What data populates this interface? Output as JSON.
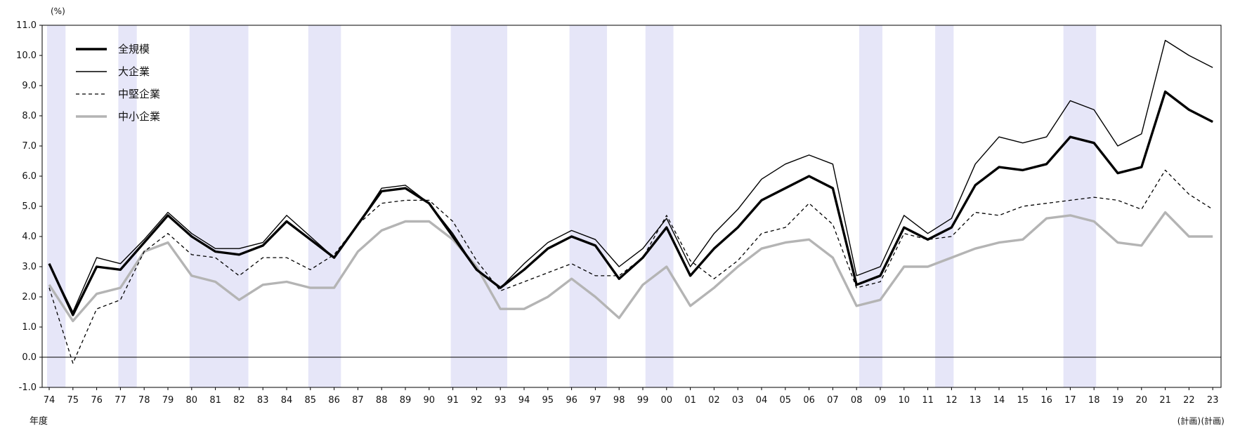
{
  "chart_data": {
    "type": "line",
    "y_unit_label": "(%)",
    "x_axis_suffix_label": "年度",
    "ylim": [
      -1.0,
      11.0
    ],
    "y_ticks": [
      "11.0",
      "10.0",
      "9.0",
      "8.0",
      "7.0",
      "6.0",
      "5.0",
      "4.0",
      "3.0",
      "2.0",
      "1.0",
      "0.0",
      "-1.0"
    ],
    "y_tick_values": [
      11,
      10,
      9,
      8,
      7,
      6,
      5,
      4,
      3,
      2,
      1,
      0,
      -1
    ],
    "categories": [
      "74",
      "75",
      "76",
      "77",
      "78",
      "79",
      "80",
      "81",
      "82",
      "83",
      "84",
      "85",
      "86",
      "87",
      "88",
      "89",
      "90",
      "91",
      "92",
      "93",
      "94",
      "95",
      "96",
      "97",
      "98",
      "99",
      "00",
      "01",
      "02",
      "03",
      "04",
      "05",
      "06",
      "07",
      "08",
      "09",
      "10",
      "11",
      "12",
      "13",
      "14",
      "15",
      "16",
      "17",
      "18",
      "19",
      "20",
      "21",
      "22",
      "23"
    ],
    "plan_label": "(計画)",
    "plan_categories": [
      "22",
      "23"
    ],
    "recession_shading": [
      [
        0,
        0.6
      ],
      [
        3,
        3.6
      ],
      [
        6,
        8.3
      ],
      [
        11,
        12.2
      ],
      [
        17,
        19.2
      ],
      [
        22,
        23.4
      ],
      [
        25.2,
        26.2
      ],
      [
        34.2,
        35
      ],
      [
        37.4,
        38
      ],
      [
        42.8,
        44
      ]
    ],
    "legend": [
      {
        "name": "全規模",
        "style": "thick"
      },
      {
        "name": "大企業",
        "style": "thin"
      },
      {
        "name": "中堅企業",
        "style": "dashed"
      },
      {
        "name": "中小企業",
        "style": "gray"
      }
    ],
    "series": [
      {
        "name": "全規模",
        "style": "thick",
        "values": [
          3.1,
          1.4,
          3.0,
          2.9,
          3.8,
          4.7,
          4.0,
          3.5,
          3.4,
          3.7,
          4.5,
          3.9,
          3.3,
          4.4,
          5.5,
          5.6,
          5.1,
          4.0,
          2.9,
          2.3,
          2.9,
          3.6,
          4.0,
          3.7,
          2.6,
          3.3,
          4.3,
          2.7,
          3.6,
          4.3,
          5.2,
          5.6,
          6.0,
          5.6,
          2.4,
          2.7,
          4.3,
          3.9,
          4.3,
          5.7,
          6.3,
          6.2,
          6.4,
          7.3,
          7.1,
          6.1,
          6.3,
          8.8,
          8.2,
          7.8
        ]
      },
      {
        "name": "大企業",
        "style": "thin",
        "values": [
          3.1,
          1.5,
          3.3,
          3.1,
          3.9,
          4.8,
          4.1,
          3.6,
          3.6,
          3.8,
          4.7,
          4.0,
          3.3,
          4.4,
          5.6,
          5.7,
          5.1,
          4.1,
          2.9,
          2.3,
          3.1,
          3.8,
          4.2,
          3.9,
          3.0,
          3.6,
          4.6,
          3.0,
          4.1,
          4.9,
          5.9,
          6.4,
          6.7,
          6.4,
          2.7,
          3.0,
          4.7,
          4.1,
          4.6,
          6.4,
          7.3,
          7.1,
          7.3,
          8.5,
          8.2,
          7.0,
          7.4,
          10.5,
          10.0,
          9.6
        ]
      },
      {
        "name": "中堅企業",
        "style": "dashed",
        "values": [
          2.3,
          -0.2,
          1.6,
          1.9,
          3.5,
          4.1,
          3.4,
          3.3,
          2.7,
          3.3,
          3.3,
          2.9,
          3.4,
          4.4,
          5.1,
          5.2,
          5.2,
          4.5,
          3.2,
          2.2,
          2.5,
          2.8,
          3.1,
          2.7,
          2.7,
          3.3,
          4.7,
          3.2,
          2.6,
          3.2,
          4.1,
          4.3,
          5.1,
          4.4,
          2.3,
          2.5,
          4.1,
          3.9,
          4.0,
          4.8,
          4.7,
          5.0,
          5.1,
          5.2,
          5.3,
          5.2,
          4.9,
          6.2,
          5.4,
          4.9
        ]
      },
      {
        "name": "中小企業",
        "style": "gray",
        "values": [
          2.4,
          1.2,
          2.1,
          2.3,
          3.5,
          3.8,
          2.7,
          2.5,
          1.9,
          2.4,
          2.5,
          2.3,
          2.3,
          3.5,
          4.2,
          4.5,
          4.5,
          3.9,
          3.0,
          1.6,
          1.6,
          2.0,
          2.6,
          2.0,
          1.3,
          2.4,
          3.0,
          1.7,
          2.3,
          3.0,
          3.6,
          3.8,
          3.9,
          3.3,
          1.7,
          1.9,
          3.0,
          3.0,
          3.3,
          3.6,
          3.8,
          3.9,
          4.6,
          4.7,
          4.5,
          3.8,
          3.7,
          4.8,
          4.0,
          4.0
        ]
      }
    ],
    "colors": {
      "thick": "#000000",
      "thin": "#000000",
      "dashed": "#000000",
      "gray": "#b4b4b4",
      "shade": "#e6e6f8"
    }
  }
}
